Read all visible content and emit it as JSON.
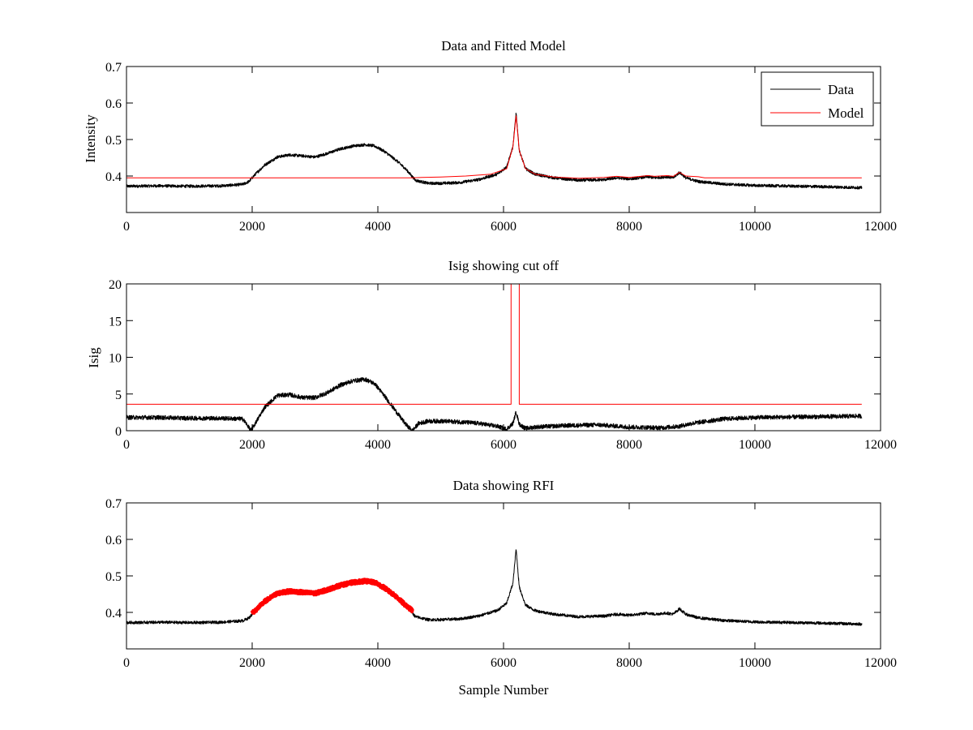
{
  "colors": {
    "data": "#000000",
    "model": "#ff0000",
    "rfi": "#ff0000",
    "axes": "#000000"
  },
  "chart_data": [
    {
      "type": "line",
      "title": "Data and Fitted Model",
      "xlabel": "",
      "ylabel": "Intensity",
      "xlim": [
        0,
        12000
      ],
      "ylim": [
        0.3,
        0.7
      ],
      "xticks": [
        0,
        2000,
        4000,
        6000,
        8000,
        10000,
        12000
      ],
      "yticks": [
        0.4,
        0.5,
        0.6,
        0.7
      ],
      "legend": {
        "placement": "top-right",
        "entries": [
          "Data",
          "Model"
        ]
      },
      "grid": false,
      "series": [
        {
          "name": "Data",
          "color": "#000000",
          "noise": 0.004,
          "x": [
            0,
            500,
            1000,
            1500,
            1850,
            1950,
            2050,
            2200,
            2400,
            2600,
            2800,
            3000,
            3200,
            3400,
            3600,
            3800,
            3950,
            4100,
            4300,
            4450,
            4600,
            4800,
            5000,
            5300,
            5600,
            5900,
            6050,
            6150,
            6200,
            6250,
            6350,
            6500,
            6800,
            7200,
            7600,
            7800,
            8000,
            8300,
            8400,
            8600,
            8700,
            8800,
            8900,
            9100,
            9500,
            10000,
            11000,
            11700
          ],
          "y": [
            0.372,
            0.373,
            0.372,
            0.373,
            0.377,
            0.385,
            0.405,
            0.43,
            0.452,
            0.458,
            0.455,
            0.452,
            0.462,
            0.474,
            0.482,
            0.486,
            0.482,
            0.468,
            0.442,
            0.418,
            0.388,
            0.38,
            0.38,
            0.382,
            0.39,
            0.405,
            0.425,
            0.48,
            0.575,
            0.47,
            0.42,
            0.405,
            0.395,
            0.388,
            0.39,
            0.395,
            0.392,
            0.398,
            0.395,
            0.398,
            0.395,
            0.41,
            0.395,
            0.385,
            0.378,
            0.374,
            0.371,
            0.368
          ]
        },
        {
          "name": "Model",
          "color": "#ff0000",
          "x": [
            0,
            4550,
            4700,
            5000,
            5400,
            5800,
            6050,
            6150,
            6200,
            6250,
            6350,
            6500,
            6800,
            7200,
            7600,
            7800,
            8000,
            8300,
            8400,
            8600,
            8700,
            8800,
            8900,
            9100,
            9200,
            11700
          ],
          "y": [
            0.395,
            0.395,
            0.396,
            0.397,
            0.4,
            0.405,
            0.42,
            0.48,
            0.565,
            0.47,
            0.42,
            0.405,
            0.397,
            0.394,
            0.396,
            0.399,
            0.396,
            0.401,
            0.399,
            0.401,
            0.399,
            0.41,
            0.4,
            0.398,
            0.395,
            0.395
          ]
        }
      ]
    },
    {
      "type": "line",
      "title": "Isig showing cut off",
      "xlabel": "",
      "ylabel": "Isig",
      "xlim": [
        0,
        12000
      ],
      "ylim": [
        0,
        20
      ],
      "xticks": [
        0,
        2000,
        4000,
        6000,
        8000,
        10000,
        12000
      ],
      "yticks": [
        0,
        5,
        10,
        15,
        20
      ],
      "grid": false,
      "series": [
        {
          "name": "",
          "color": "#000000",
          "noise": 0.3,
          "x": [
            0,
            500,
            1000,
            1500,
            1850,
            1920,
            1980,
            2050,
            2200,
            2400,
            2600,
            2800,
            3000,
            3200,
            3400,
            3600,
            3800,
            3950,
            4100,
            4300,
            4450,
            4550,
            4650,
            4800,
            5000,
            5300,
            5600,
            5900,
            6050,
            6150,
            6200,
            6250,
            6350,
            6500,
            7000,
            7500,
            8000,
            8500,
            8800,
            9000,
            9500,
            10000,
            11000,
            11700
          ],
          "y": [
            1.8,
            1.8,
            1.7,
            1.7,
            1.6,
            0.8,
            0.0,
            1.0,
            3.2,
            4.8,
            4.9,
            4.5,
            4.5,
            5.2,
            6.2,
            6.8,
            7.0,
            6.4,
            4.8,
            2.5,
            0.8,
            0.0,
            1.0,
            1.3,
            1.3,
            1.2,
            1.0,
            0.6,
            0.2,
            1.0,
            2.6,
            0.9,
            0.3,
            0.5,
            0.7,
            0.8,
            0.5,
            0.4,
            0.6,
            1.0,
            1.6,
            1.8,
            1.9,
            2.0
          ]
        },
        {
          "name": "",
          "color": "#ff0000",
          "x": [
            0,
            6120,
            6120,
            6250,
            6250,
            11700
          ],
          "y": [
            3.6,
            3.6,
            20,
            20,
            3.6,
            3.6
          ]
        }
      ]
    },
    {
      "type": "line",
      "title": "Data showing RFI",
      "xlabel": "Sample Number",
      "ylabel": "",
      "xlim": [
        0,
        12000
      ],
      "ylim": [
        0.3,
        0.7
      ],
      "xticks": [
        0,
        2000,
        4000,
        6000,
        8000,
        10000,
        12000
      ],
      "yticks": [
        0.4,
        0.5,
        0.6,
        0.7
      ],
      "grid": false,
      "series": [
        {
          "name": "",
          "color": "#000000",
          "noise": 0.004,
          "x": [
            0,
            500,
            1000,
            1500,
            1850,
            1950,
            2050,
            2200,
            2400,
            2600,
            2800,
            3000,
            3200,
            3400,
            3600,
            3800,
            3950,
            4100,
            4300,
            4450,
            4600,
            4800,
            5000,
            5300,
            5600,
            5900,
            6050,
            6150,
            6200,
            6250,
            6350,
            6500,
            6800,
            7200,
            7600,
            7800,
            8000,
            8300,
            8400,
            8600,
            8700,
            8800,
            8900,
            9100,
            9500,
            10000,
            11000,
            11700
          ],
          "y": [
            0.372,
            0.373,
            0.372,
            0.373,
            0.377,
            0.385,
            0.405,
            0.43,
            0.452,
            0.458,
            0.455,
            0.452,
            0.462,
            0.474,
            0.482,
            0.486,
            0.482,
            0.468,
            0.442,
            0.418,
            0.388,
            0.38,
            0.38,
            0.382,
            0.39,
            0.405,
            0.425,
            0.48,
            0.575,
            0.47,
            0.42,
            0.405,
            0.395,
            0.388,
            0.39,
            0.395,
            0.392,
            0.398,
            0.395,
            0.398,
            0.395,
            0.41,
            0.395,
            0.385,
            0.378,
            0.374,
            0.371,
            0.368
          ]
        },
        {
          "name": "",
          "color": "#ff0000",
          "noise": 0.004,
          "thick": true,
          "x": [
            2000,
            2050,
            2200,
            2400,
            2600,
            2800,
            3000,
            3200,
            3400,
            3600,
            3800,
            3950,
            4100,
            4300,
            4450,
            4550
          ],
          "y": [
            0.398,
            0.405,
            0.43,
            0.452,
            0.458,
            0.455,
            0.452,
            0.462,
            0.474,
            0.482,
            0.486,
            0.482,
            0.468,
            0.442,
            0.418,
            0.405
          ]
        }
      ]
    }
  ]
}
